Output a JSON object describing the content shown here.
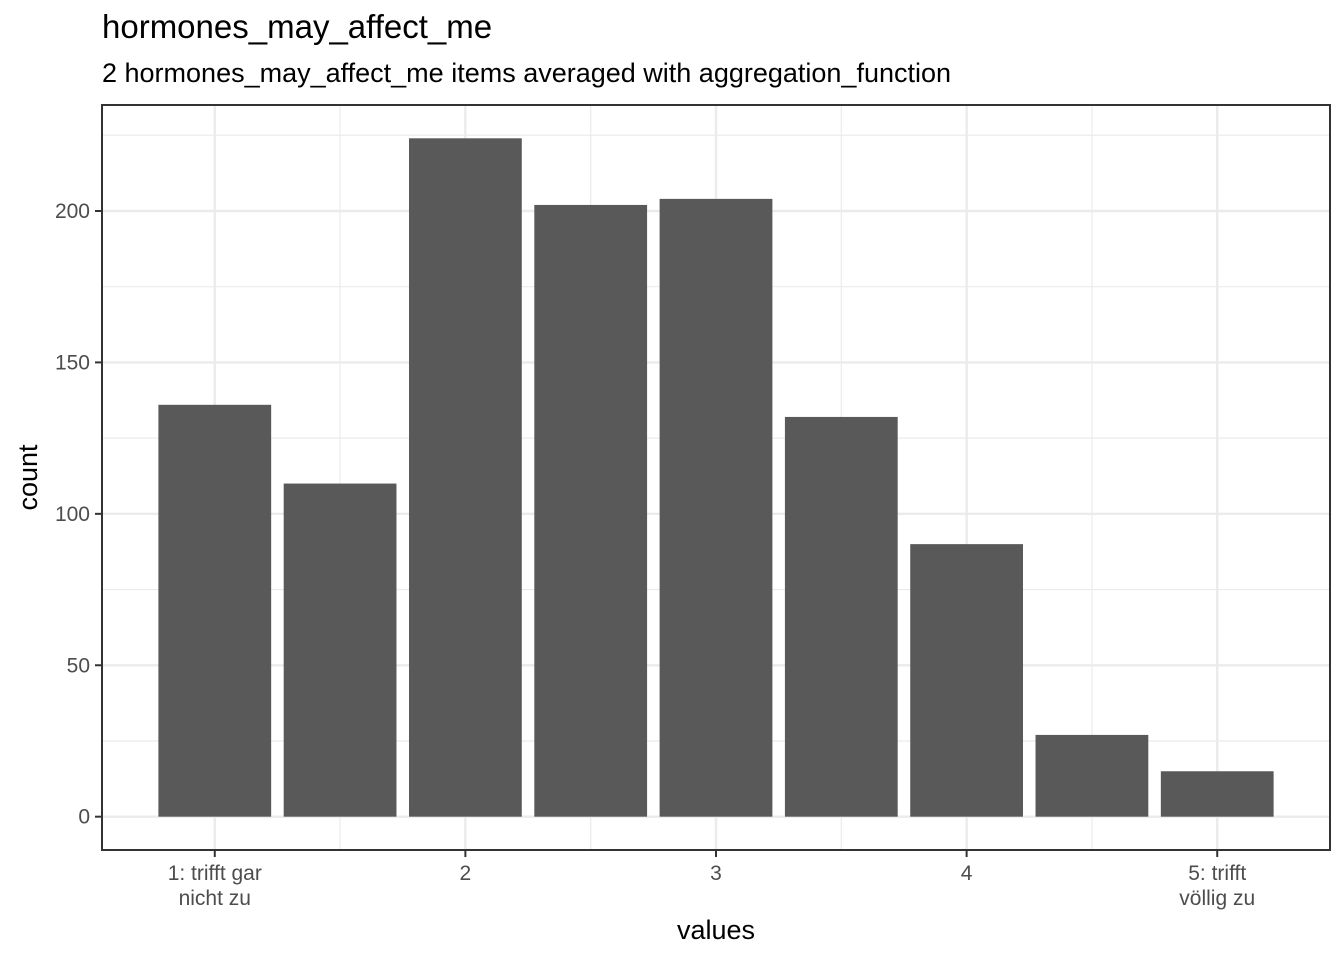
{
  "chart_data": {
    "type": "bar",
    "title": "hormones_may_affect_me",
    "subtitle": "2 hormones_may_affect_me items averaged with aggregation_function",
    "xlabel": "values",
    "ylabel": "count",
    "x": [
      1,
      1.5,
      2,
      2.5,
      3,
      3.5,
      4,
      4.5,
      5
    ],
    "values": [
      136,
      110,
      224,
      202,
      204,
      132,
      90,
      27,
      15
    ],
    "xlim": [
      0.55,
      5.45
    ],
    "ylim": [
      -11,
      235
    ],
    "x_ticks": [
      {
        "value": 1,
        "lines": [
          "1: trifft gar",
          "nicht zu"
        ]
      },
      {
        "value": 2,
        "lines": [
          "2"
        ]
      },
      {
        "value": 3,
        "lines": [
          "3"
        ]
      },
      {
        "value": 4,
        "lines": [
          "4"
        ]
      },
      {
        "value": 5,
        "lines": [
          "5: trifft",
          "völlig zu"
        ]
      }
    ],
    "y_ticks": [
      0,
      50,
      100,
      150,
      200
    ],
    "grid": true,
    "bar_color": "#595959",
    "grid_color": "#ebebeb",
    "panel_border_color": "#333333"
  }
}
